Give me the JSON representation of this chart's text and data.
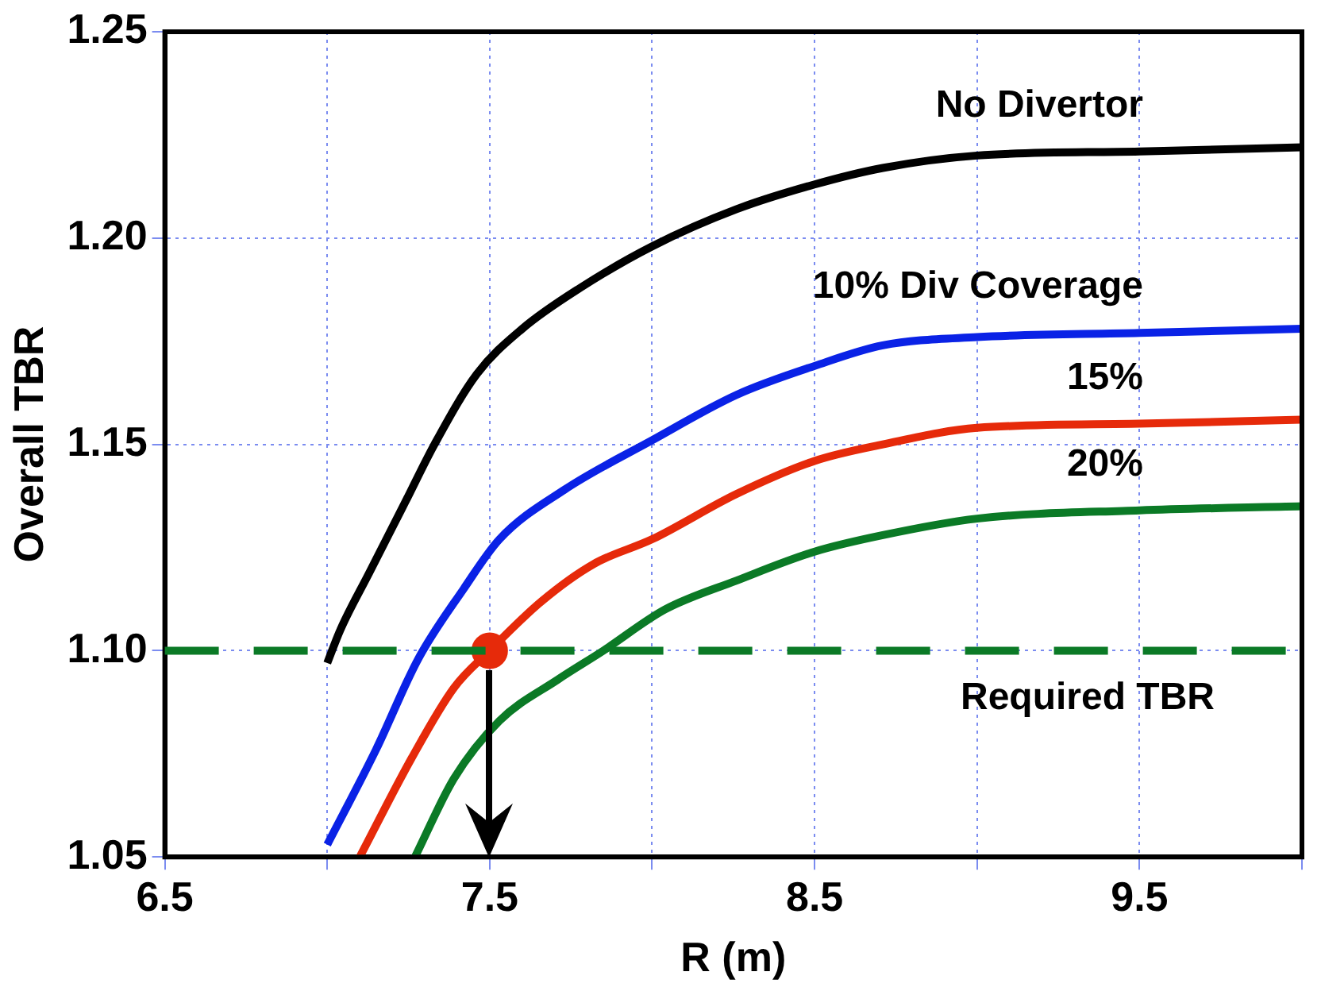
{
  "chart_data": {
    "type": "line",
    "xlabel": "R (m)",
    "ylabel": "Overall TBR",
    "xlim": [
      6.5,
      10
    ],
    "ylim": [
      1.05,
      1.25
    ],
    "xticks": [
      6.5,
      {
        "value": 7,
        "label": null
      },
      7.5,
      {
        "value": 8,
        "label": null
      },
      8.5,
      {
        "value": 9,
        "label": null
      },
      9.5,
      {
        "value": 10,
        "label": null
      }
    ],
    "yticks": [
      {
        "value": 1.05,
        "label": "1.05"
      },
      {
        "value": 1.1,
        "label": "1.10"
      },
      {
        "value": 1.15,
        "label": "1.15"
      },
      {
        "value": 1.2,
        "label": "1.20"
      },
      {
        "value": 1.25,
        "label": "1.25"
      }
    ],
    "grid": true,
    "legend": false,
    "marker": "none",
    "line_style": "solid",
    "series": [
      {
        "name": "No Divertor",
        "color": "#000000",
        "x": [
          7.0,
          7.04,
          7.13,
          7.24,
          7.33,
          7.46,
          7.6,
          7.78,
          8.0,
          8.26,
          8.5,
          8.71,
          9.0,
          9.5,
          10
        ],
        "values": [
          1.097,
          1.105,
          1.119,
          1.136,
          1.15,
          1.167,
          1.178,
          1.188,
          1.198,
          1.207,
          1.213,
          1.217,
          1.22,
          1.221,
          1.222
        ]
      },
      {
        "name": "10% Div Coverage",
        "color": "#0a22e6",
        "x": [
          7.0,
          7.15,
          7.28,
          7.42,
          7.53,
          7.73,
          8.0,
          8.26,
          8.5,
          8.71,
          9.0,
          9.5,
          10
        ],
        "values": [
          1.053,
          1.076,
          1.098,
          1.115,
          1.127,
          1.139,
          1.151,
          1.162,
          1.169,
          1.174,
          1.176,
          1.177,
          1.178
        ]
      },
      {
        "name": "15%",
        "color": "#e62a0a",
        "x": [
          7.1,
          7.26,
          7.39,
          7.5,
          7.66,
          7.82,
          8.0,
          8.26,
          8.5,
          8.71,
          9.0,
          9.5,
          10
        ],
        "values": [
          1.05,
          1.074,
          1.091,
          1.1,
          1.112,
          1.121,
          1.127,
          1.138,
          1.146,
          1.15,
          1.154,
          1.155,
          1.156
        ]
      },
      {
        "name": "20%",
        "color": "#0b7a26",
        "x": [
          7.27,
          7.39,
          7.53,
          7.71,
          7.85,
          8.04,
          8.26,
          8.5,
          8.71,
          9.0,
          9.5,
          10
        ],
        "values": [
          1.05,
          1.069,
          1.083,
          1.093,
          1.1,
          1.11,
          1.117,
          1.124,
          1.128,
          1.132,
          1.134,
          1.135
        ]
      },
      {
        "type": "scatter",
        "marker": "circle",
        "color": "#e62a0a",
        "x": [
          7.5
        ],
        "values": [
          1.1
        ]
      }
    ],
    "ref_lines": [
      {
        "axis": "y",
        "value": 1.1,
        "label": "Required TBR",
        "color": "#0b7a26",
        "line_style": "dashed"
      }
    ]
  }
}
